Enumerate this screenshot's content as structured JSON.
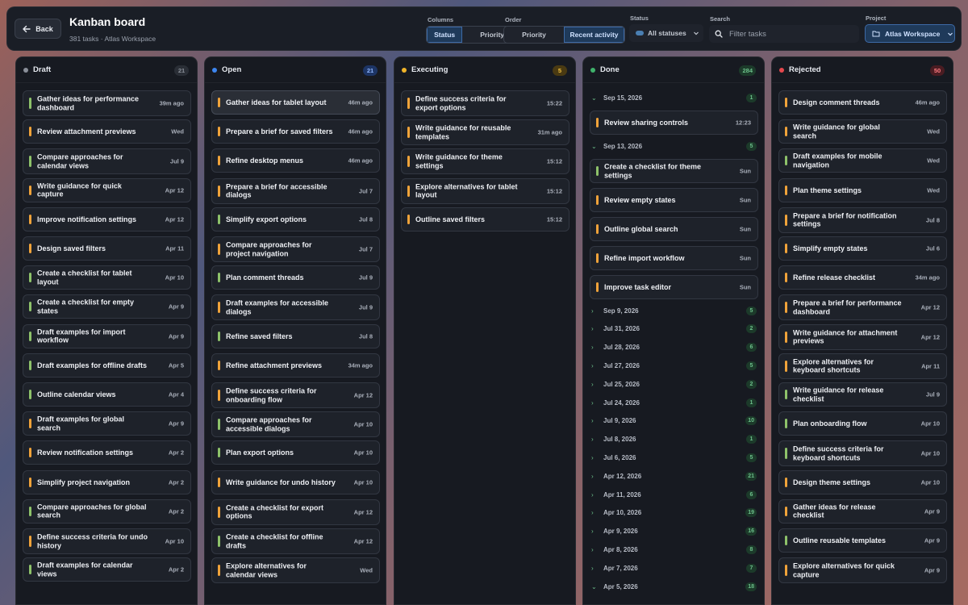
{
  "header": {
    "back_label": "Back",
    "title": "Kanban board",
    "subtitle": "381 tasks · Atlas Workspace",
    "columns_label": "Columns",
    "columns_options": [
      "Status",
      "Priority"
    ],
    "order_label": "Order",
    "order_options": [
      "Priority",
      "Recent activity"
    ],
    "status_label": "Status",
    "status_value": "All statuses",
    "search_label": "Search",
    "search_placeholder": "Filter tasks",
    "project_label": "Project",
    "project_value": "Atlas Workspace"
  },
  "colors": {
    "draft": "#8a8f99",
    "open": "#3d86f0",
    "executing": "#f0b429",
    "done": "#3fb26b",
    "rejected": "#e5484d",
    "bar_orange": "#f0a33a",
    "bar_green": "#8ec26a"
  },
  "columns": [
    {
      "title": "Draft",
      "count": "21",
      "cards": [
        {
          "title": "Gather ideas for performance dashboard",
          "time": "39m ago",
          "bar": "green"
        },
        {
          "title": "Review attachment previews",
          "time": "Wed",
          "bar": "orange"
        },
        {
          "title": "Compare approaches for calendar views",
          "time": "Jul 9",
          "bar": "green"
        },
        {
          "title": "Write guidance for quick capture",
          "time": "Apr 12",
          "bar": "orange"
        },
        {
          "title": "Improve notification settings",
          "time": "Apr 12",
          "bar": "orange"
        },
        {
          "title": "Design saved filters",
          "time": "Apr 11",
          "bar": "orange"
        },
        {
          "title": "Create a checklist for tablet layout",
          "time": "Apr 10",
          "bar": "green"
        },
        {
          "title": "Create a checklist for empty states",
          "time": "Apr 9",
          "bar": "green"
        },
        {
          "title": "Draft examples for import workflow",
          "time": "Apr 9",
          "bar": "green"
        },
        {
          "title": "Draft examples for offline drafts",
          "time": "Apr 5",
          "bar": "green"
        },
        {
          "title": "Outline calendar views",
          "time": "Apr 4",
          "bar": "green"
        },
        {
          "title": "Draft examples for global search",
          "time": "Apr 9",
          "bar": "orange"
        },
        {
          "title": "Review notification settings",
          "time": "Apr 2",
          "bar": "orange"
        },
        {
          "title": "Simplify project navigation",
          "time": "Apr 2",
          "bar": "orange"
        },
        {
          "title": "Compare approaches for global search",
          "time": "Apr 2",
          "bar": "green"
        },
        {
          "title": "Define success criteria for undo history",
          "time": "Apr 10",
          "bar": "orange"
        },
        {
          "title": "Draft examples for calendar views",
          "time": "Apr 2",
          "bar": "green"
        }
      ]
    },
    {
      "title": "Open",
      "count": "21",
      "cards": [
        {
          "title": "Gather ideas for tablet layout",
          "time": "46m ago",
          "bar": "orange"
        },
        {
          "title": "Prepare a brief for saved filters",
          "time": "46m ago",
          "bar": "orange"
        },
        {
          "title": "Refine desktop menus",
          "time": "46m ago",
          "bar": "orange"
        },
        {
          "title": "Prepare a brief for accessible dialogs",
          "time": "Jul 7",
          "bar": "orange"
        },
        {
          "title": "Simplify export options",
          "time": "Jul 8",
          "bar": "green"
        },
        {
          "title": "Compare approaches for project navigation",
          "time": "Jul 7",
          "bar": "orange"
        },
        {
          "title": "Plan comment threads",
          "time": "Jul 9",
          "bar": "green"
        },
        {
          "title": "Draft examples for accessible dialogs",
          "time": "Jul 9",
          "bar": "orange"
        },
        {
          "title": "Refine saved filters",
          "time": "Jul 8",
          "bar": "green"
        },
        {
          "title": "Refine attachment previews",
          "time": "34m ago",
          "bar": "orange"
        },
        {
          "title": "Define success criteria for onboarding flow",
          "time": "Apr 12",
          "bar": "orange"
        },
        {
          "title": "Compare approaches for accessible dialogs",
          "time": "Apr 10",
          "bar": "green"
        },
        {
          "title": "Plan export options",
          "time": "Apr 10",
          "bar": "green"
        },
        {
          "title": "Write guidance for undo history",
          "time": "Apr 10",
          "bar": "orange"
        },
        {
          "title": "Create a checklist for export options",
          "time": "Apr 12",
          "bar": "orange"
        },
        {
          "title": "Create a checklist for offline drafts",
          "time": "Apr 12",
          "bar": "green"
        },
        {
          "title": "Explore alternatives for calendar views",
          "time": "Wed",
          "bar": "orange"
        }
      ]
    },
    {
      "title": "Executing",
      "count": "5",
      "cards": [
        {
          "title": "Define success criteria for export options",
          "time": "15:22",
          "bar": "orange"
        },
        {
          "title": "Write guidance for reusable templates",
          "time": "31m ago",
          "bar": "orange"
        },
        {
          "title": "Write guidance for theme settings",
          "time": "15:12",
          "bar": "orange"
        },
        {
          "title": "Explore alternatives for tablet layout",
          "time": "15:12",
          "bar": "orange"
        },
        {
          "title": "Outline saved filters",
          "time": "15:12",
          "bar": "orange"
        }
      ]
    },
    {
      "title": "Done",
      "count": "284",
      "groups": [
        {
          "date": "Sep 15, 2026",
          "count": "1",
          "open": true,
          "cards": [
            {
              "title": "Review sharing controls",
              "time": "12:23",
              "bar": "orange"
            }
          ]
        },
        {
          "date": "Sep 13, 2026",
          "count": "5",
          "open": true,
          "cards": [
            {
              "title": "Create a checklist for theme settings",
              "time": "Sun",
              "bar": "green"
            },
            {
              "title": "Review empty states",
              "time": "Sun",
              "bar": "orange"
            },
            {
              "title": "Outline global search",
              "time": "Sun",
              "bar": "orange"
            },
            {
              "title": "Refine import workflow",
              "time": "Sun",
              "bar": "orange"
            },
            {
              "title": "Improve task editor",
              "time": "Sun",
              "bar": "orange"
            }
          ]
        },
        {
          "date": "Sep 9, 2026",
          "count": "5",
          "open": false
        },
        {
          "date": "Jul 31, 2026",
          "count": "2",
          "open": false
        },
        {
          "date": "Jul 28, 2026",
          "count": "6",
          "open": false
        },
        {
          "date": "Jul 27, 2026",
          "count": "5",
          "open": false
        },
        {
          "date": "Jul 25, 2026",
          "count": "2",
          "open": false
        },
        {
          "date": "Jul 24, 2026",
          "count": "1",
          "open": false
        },
        {
          "date": "Jul 9, 2026",
          "count": "10",
          "open": false
        },
        {
          "date": "Jul 8, 2026",
          "count": "1",
          "open": false
        },
        {
          "date": "Jul 6, 2026",
          "count": "5",
          "open": false
        },
        {
          "date": "Apr 12, 2026",
          "count": "21",
          "open": false
        },
        {
          "date": "Apr 11, 2026",
          "count": "6",
          "open": false
        },
        {
          "date": "Apr 10, 2026",
          "count": "19",
          "open": false
        },
        {
          "date": "Apr 9, 2026",
          "count": "16",
          "open": false
        },
        {
          "date": "Apr 8, 2026",
          "count": "8",
          "open": false
        },
        {
          "date": "Apr 7, 2026",
          "count": "7",
          "open": false
        },
        {
          "date": "Apr 5, 2026",
          "count": "18",
          "open": true
        }
      ]
    },
    {
      "title": "Rejected",
      "count": "50",
      "cards": [
        {
          "title": "Design comment threads",
          "time": "46m ago",
          "bar": "orange"
        },
        {
          "title": "Write guidance for global search",
          "time": "Wed",
          "bar": "orange"
        },
        {
          "title": "Draft examples for mobile navigation",
          "time": "Wed",
          "bar": "green"
        },
        {
          "title": "Plan theme settings",
          "time": "Wed",
          "bar": "orange"
        },
        {
          "title": "Prepare a brief for notification settings",
          "time": "Jul 8",
          "bar": "orange"
        },
        {
          "title": "Simplify empty states",
          "time": "Jul 6",
          "bar": "orange"
        },
        {
          "title": "Refine release checklist",
          "time": "34m ago",
          "bar": "orange"
        },
        {
          "title": "Prepare a brief for performance dashboard",
          "time": "Apr 12",
          "bar": "orange"
        },
        {
          "title": "Write guidance for attachment previews",
          "time": "Apr 12",
          "bar": "orange"
        },
        {
          "title": "Explore alternatives for keyboard shortcuts",
          "time": "Apr 11",
          "bar": "orange"
        },
        {
          "title": "Write guidance for release checklist",
          "time": "Jul 9",
          "bar": "green"
        },
        {
          "title": "Plan onboarding flow",
          "time": "Apr 10",
          "bar": "green"
        },
        {
          "title": "Define success criteria for keyboard shortcuts",
          "time": "Apr 10",
          "bar": "green"
        },
        {
          "title": "Design theme settings",
          "time": "Apr 10",
          "bar": "orange"
        },
        {
          "title": "Gather ideas for release checklist",
          "time": "Apr 9",
          "bar": "orange"
        },
        {
          "title": "Outline reusable templates",
          "time": "Apr 9",
          "bar": "green"
        },
        {
          "title": "Explore alternatives for quick capture",
          "time": "Apr 9",
          "bar": "orange"
        }
      ]
    }
  ]
}
